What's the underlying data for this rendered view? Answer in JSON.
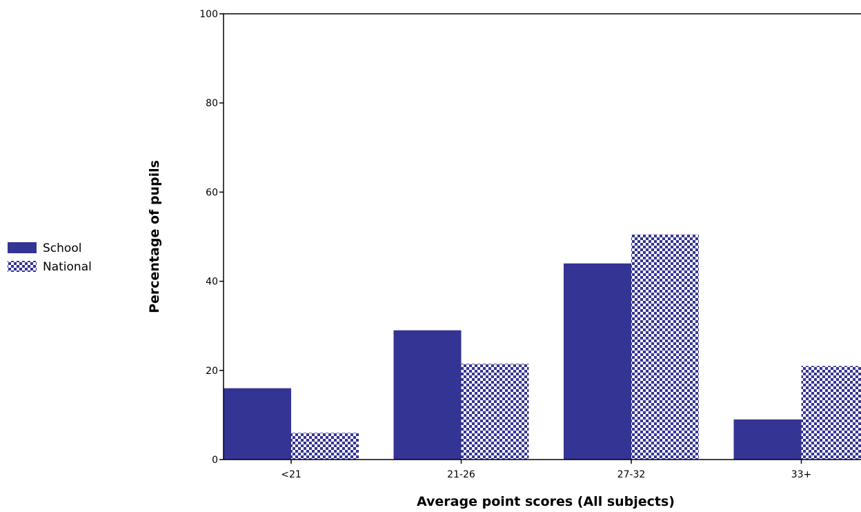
{
  "chart_data": {
    "type": "bar",
    "categories": [
      "<21",
      "21-26",
      "27-32",
      "33+"
    ],
    "series": [
      {
        "name": "School",
        "values": [
          16,
          29,
          44,
          9
        ],
        "pattern": "solid",
        "color": "#343494"
      },
      {
        "name": "National",
        "values": [
          6,
          21.5,
          50.5,
          21
        ],
        "pattern": "checker",
        "color": "#343494"
      }
    ],
    "title": "",
    "xlabel": "Average point scores (All subjects)",
    "ylabel": "Percentage of pupils",
    "ylim": [
      0,
      100
    ],
    "yticks": [
      0,
      20,
      40,
      60,
      80,
      100
    ],
    "grid": false,
    "legend_position": "left"
  }
}
